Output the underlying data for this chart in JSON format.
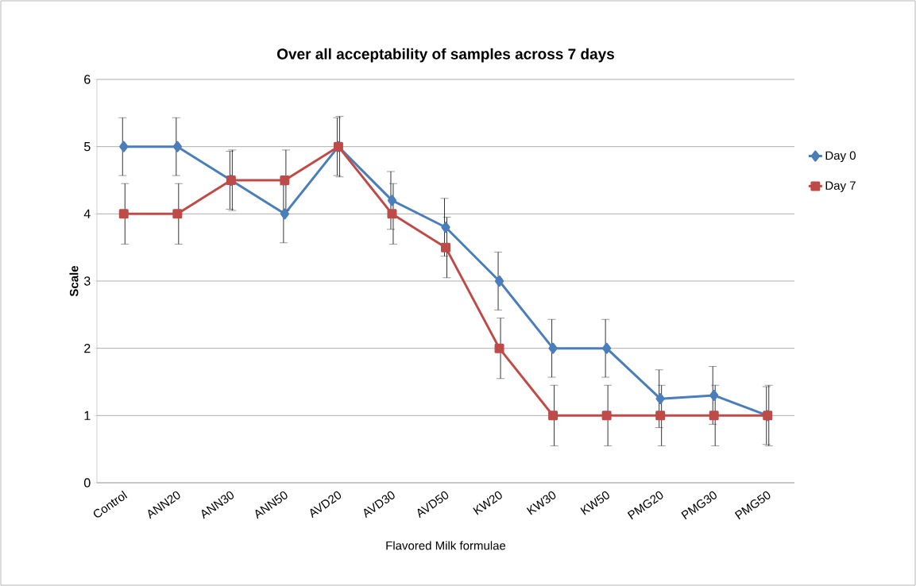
{
  "chart_data": {
    "type": "line",
    "title": "Over all acceptability of samples across 7 days",
    "xlabel": "Flavored Milk formulae",
    "ylabel": "Scale",
    "categories": [
      "Control",
      "ANN20",
      "ANN30",
      "ANN50",
      "AVD20",
      "AVD30",
      "AVD50",
      "KW20",
      "KW30",
      "KW50",
      "PMG20",
      "PMG30",
      "PMG50"
    ],
    "series": [
      {
        "name": "Day 0",
        "color": "#4a7ebb",
        "marker": "diamond",
        "values": [
          5,
          5,
          4.5,
          4,
          5,
          4.2,
          3.8,
          3,
          2,
          2,
          1.25,
          1.3,
          1
        ],
        "errors": [
          0.43,
          0.43,
          0.43,
          0.43,
          0.43,
          0.43,
          0.43,
          0.43,
          0.43,
          0.43,
          0.43,
          0.43,
          0.43
        ]
      },
      {
        "name": "Day 7",
        "color": "#be4b48",
        "marker": "square",
        "values": [
          4,
          4,
          4.5,
          4.5,
          5,
          4,
          3.5,
          2,
          1,
          1,
          1,
          1,
          1
        ],
        "errors": [
          0.45,
          0.45,
          0.45,
          0.45,
          0.45,
          0.45,
          0.45,
          0.45,
          0.45,
          0.45,
          0.45,
          0.45,
          0.45
        ]
      }
    ],
    "ylim": [
      0,
      6
    ],
    "yticks": [
      0,
      1,
      2,
      3,
      4,
      5,
      6
    ],
    "grid": "y",
    "legend": "right"
  }
}
